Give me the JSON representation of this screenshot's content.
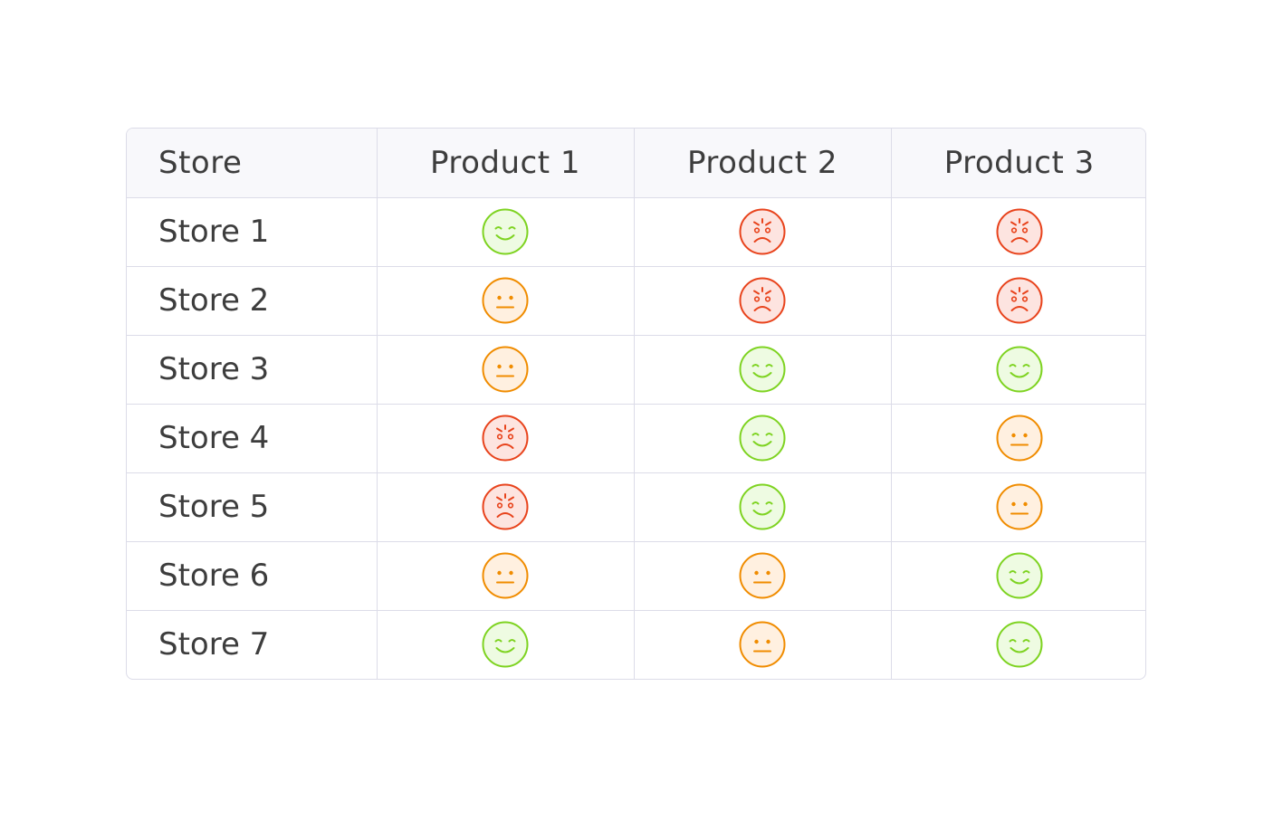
{
  "table": {
    "headers": [
      "Store",
      "Product 1",
      "Product 2",
      "Product 3"
    ],
    "rows": [
      {
        "store": "Store 1",
        "ratings": [
          "happy",
          "angry",
          "angry"
        ]
      },
      {
        "store": "Store 2",
        "ratings": [
          "neutral",
          "angry",
          "angry"
        ]
      },
      {
        "store": "Store 3",
        "ratings": [
          "neutral",
          "happy",
          "happy"
        ]
      },
      {
        "store": "Store 4",
        "ratings": [
          "angry",
          "happy",
          "neutral"
        ]
      },
      {
        "store": "Store 5",
        "ratings": [
          "angry",
          "happy",
          "neutral"
        ]
      },
      {
        "store": "Store 6",
        "ratings": [
          "neutral",
          "neutral",
          "happy"
        ]
      },
      {
        "store": "Store 7",
        "ratings": [
          "happy",
          "neutral",
          "happy"
        ]
      }
    ]
  },
  "icons": {
    "happy": {
      "name": "happy-face-icon",
      "stroke": "#7ed321",
      "fill": "#eefbe2"
    },
    "neutral": {
      "name": "neutral-face-icon",
      "stroke": "#f08c00",
      "fill": "#fff0e0"
    },
    "angry": {
      "name": "angry-face-icon",
      "stroke": "#e8431c",
      "fill": "#fde4e0"
    }
  },
  "colors": {
    "border": "#dcdce8",
    "header_background": "#f8f8fb",
    "text": "#3d3d3d"
  }
}
